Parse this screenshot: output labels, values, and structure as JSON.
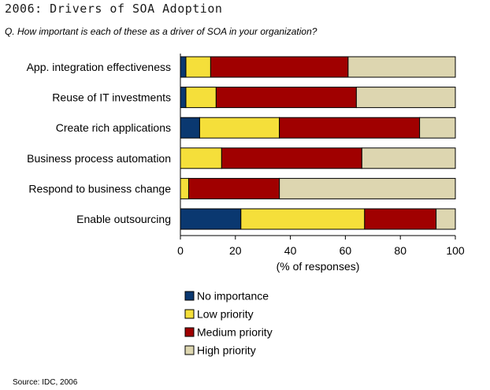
{
  "header": {
    "title": "2006: Drivers of SOA Adoption",
    "question": "Q. How important is each of these as a driver of SOA in your organization?"
  },
  "footer": {
    "source": "Source: IDC, 2006"
  },
  "chart_data": {
    "type": "bar",
    "orientation": "horizontal",
    "stacked": true,
    "title": "2006: Drivers of SOA Adoption",
    "subtitle": "Q. How important is each of these as a driver of SOA in your organization?",
    "categories": [
      "App. integration effectiveness",
      "Reuse of IT investments",
      "Create rich applications",
      "Business process automation",
      "Respond to business change",
      "Enable outsourcing"
    ],
    "series": [
      {
        "name": "No importance",
        "color": "#0a3870",
        "values": [
          2,
          2,
          7,
          0,
          0,
          22
        ]
      },
      {
        "name": "Low priority",
        "color": "#f5df3a",
        "values": [
          9,
          11,
          29,
          15,
          3,
          45
        ]
      },
      {
        "name": "Medium priority",
        "color": "#a00000",
        "values": [
          50,
          51,
          51,
          51,
          33,
          26
        ]
      },
      {
        "name": "High priority",
        "color": "#ddd6b0",
        "values": [
          39,
          36,
          13,
          34,
          64,
          7
        ]
      }
    ],
    "xlabel": "(% of responses)",
    "ylabel": "",
    "xlim": [
      0,
      100
    ],
    "xticks": [
      0,
      20,
      40,
      60,
      80,
      100
    ],
    "grid": false,
    "legend_position": "bottom"
  }
}
